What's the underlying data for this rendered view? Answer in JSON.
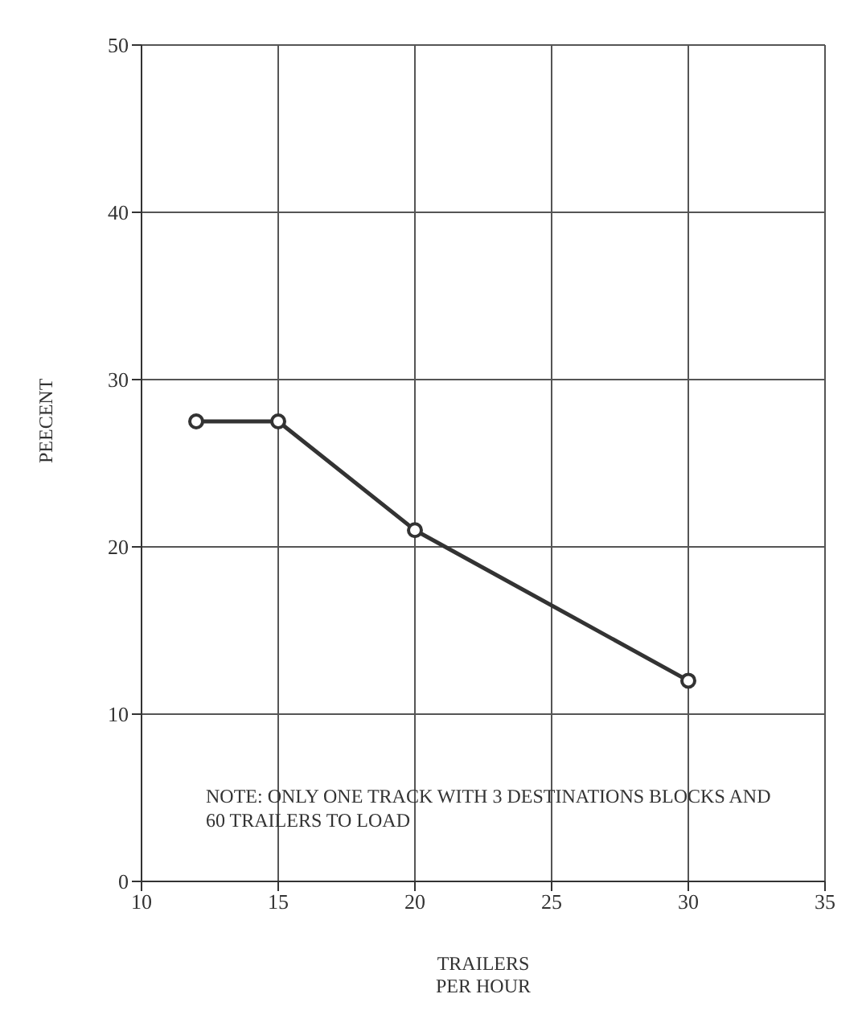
{
  "chart_data": {
    "type": "line",
    "xlabel": "TRAILERS PER HOUR",
    "ylabel": "PEECENT",
    "x": [
      12,
      15,
      20,
      30
    ],
    "series": [
      {
        "color": "#333333",
        "values": [
          27.5,
          27.5,
          21,
          12
        ]
      }
    ],
    "xlim": [
      10,
      35
    ],
    "xticks": [
      10,
      15,
      20,
      25,
      30,
      35
    ],
    "ylim": [
      0,
      50
    ],
    "yticks": [
      0,
      10,
      20,
      30,
      40,
      50
    ],
    "grid": true,
    "marker": "circle",
    "line_style": "solid",
    "annotations": [
      "NOTE:  ONLY ONE TRACK WITH 3 DESTINATIONS BLOCKS AND 60 TRAILERS TO LOAD"
    ]
  }
}
